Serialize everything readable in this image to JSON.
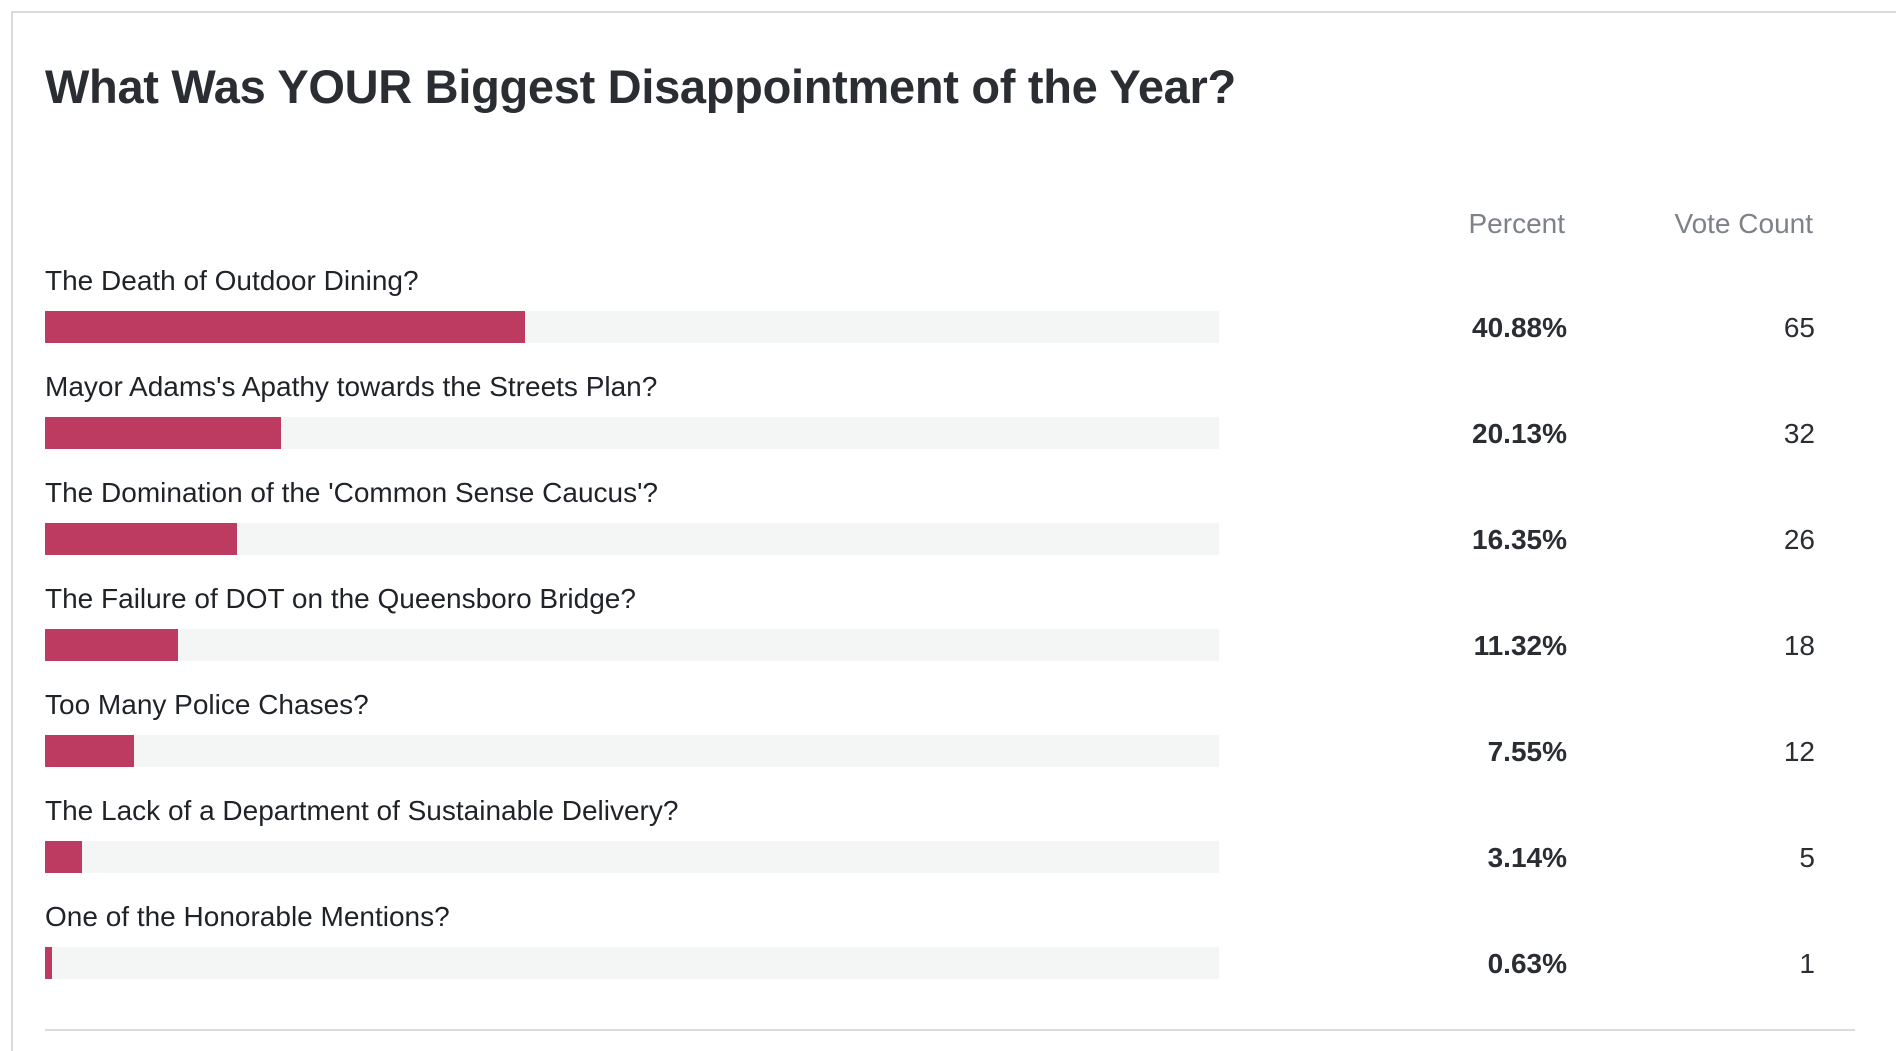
{
  "poll": {
    "title": "What Was YOUR Biggest Disappointment of the Year?",
    "columns": {
      "percent": "Percent",
      "votes": "Vote Count"
    },
    "colors": {
      "bar_fill": "#bd3a60",
      "bar_track": "#f4f5f5"
    },
    "answers": [
      {
        "label": "The Death of Outdoor Dining?",
        "percent_text": "40.88%",
        "percent": 40.88,
        "votes": "65"
      },
      {
        "label": "Mayor Adams's Apathy towards the Streets Plan?",
        "percent_text": "20.13%",
        "percent": 20.13,
        "votes": "32"
      },
      {
        "label": "The Domination of the 'Common Sense Caucus'?",
        "percent_text": "16.35%",
        "percent": 16.35,
        "votes": "26"
      },
      {
        "label": "The Failure of DOT on the Queensboro Bridge?",
        "percent_text": "11.32%",
        "percent": 11.32,
        "votes": "18"
      },
      {
        "label": "Too Many Police Chases?",
        "percent_text": "7.55%",
        "percent": 7.55,
        "votes": "12"
      },
      {
        "label": "The Lack of a Department of Sustainable Delivery?",
        "percent_text": "3.14%",
        "percent": 3.14,
        "votes": "5"
      },
      {
        "label": "One of the Honorable Mentions?",
        "percent_text": "0.63%",
        "percent": 0.63,
        "votes": "1"
      }
    ]
  }
}
